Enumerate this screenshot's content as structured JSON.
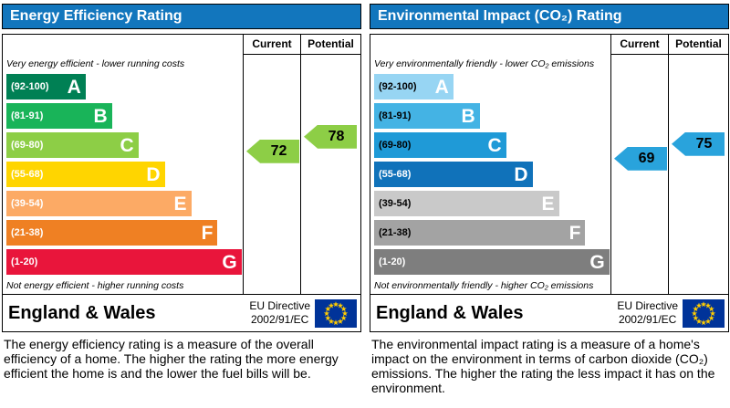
{
  "colors": {
    "header_bg": "#1276bd",
    "header_text": "#ffffff",
    "border": "#000000",
    "flag_bg": "#003399",
    "flag_stars": "#ffcc00",
    "arrow_text": "#000000",
    "page_bg": "#ffffff"
  },
  "panels": [
    {
      "title": "Energy Efficiency Rating",
      "columns": {
        "current": "Current",
        "potential": "Potential"
      },
      "top_note": "Very energy efficient - lower running costs",
      "bottom_note": "Not energy efficient - higher running costs",
      "bands": [
        {
          "letter": "A",
          "range": "(92-100)",
          "min": 92,
          "max": 100,
          "color": "#008054",
          "width_pct": 33,
          "range_color": "#ffffff",
          "letter_color": "#ffffff"
        },
        {
          "letter": "B",
          "range": "(81-91)",
          "min": 81,
          "max": 91,
          "color": "#19b459",
          "width_pct": 44,
          "range_color": "#ffffff",
          "letter_color": "#ffffff"
        },
        {
          "letter": "C",
          "range": "(69-80)",
          "min": 69,
          "max": 80,
          "color": "#8dce46",
          "width_pct": 55,
          "range_color": "#ffffff",
          "letter_color": "#ffffff"
        },
        {
          "letter": "D",
          "range": "(55-68)",
          "min": 55,
          "max": 68,
          "color": "#ffd500",
          "width_pct": 66,
          "range_color": "#ffffff",
          "letter_color": "#ffffff"
        },
        {
          "letter": "E",
          "range": "(39-54)",
          "min": 39,
          "max": 54,
          "color": "#fcaa65",
          "width_pct": 77,
          "range_color": "#ffffff",
          "letter_color": "#ffffff"
        },
        {
          "letter": "F",
          "range": "(21-38)",
          "min": 21,
          "max": 38,
          "color": "#ef8023",
          "width_pct": 88,
          "range_color": "#ffffff",
          "letter_color": "#ffffff"
        },
        {
          "letter": "G",
          "range": "(1-20)",
          "min": 1,
          "max": 20,
          "color": "#e9153b",
          "width_pct": 98,
          "range_color": "#ffffff",
          "letter_color": "#ffffff"
        }
      ],
      "current": {
        "value": 72,
        "color": "#8dce46"
      },
      "potential": {
        "value": 78,
        "color": "#8dce46"
      },
      "footer": {
        "region": "England & Wales",
        "directive": [
          "EU Directive",
          "2002/91/EC"
        ]
      },
      "description": "The energy efficiency rating is a measure of the overall efficiency of a home. The higher the rating the more energy efficient the home is and the lower the fuel bills will be."
    },
    {
      "title": "Environmental Impact (CO₂) Rating",
      "columns": {
        "current": "Current",
        "potential": "Potential"
      },
      "top_note": "Very environmentally friendly - lower CO₂ emissions",
      "bottom_note": "Not environmentally friendly - higher CO₂ emissions",
      "bands": [
        {
          "letter": "A",
          "range": "(92-100)",
          "min": 92,
          "max": 100,
          "color": "#97d5f3",
          "width_pct": 33,
          "range_color": "#000000",
          "letter_color": "#ffffff"
        },
        {
          "letter": "B",
          "range": "(81-91)",
          "min": 81,
          "max": 91,
          "color": "#44b3e4",
          "width_pct": 44,
          "range_color": "#000000",
          "letter_color": "#ffffff"
        },
        {
          "letter": "C",
          "range": "(69-80)",
          "min": 69,
          "max": 80,
          "color": "#1f9ad7",
          "width_pct": 55,
          "range_color": "#000000",
          "letter_color": "#ffffff"
        },
        {
          "letter": "D",
          "range": "(55-68)",
          "min": 55,
          "max": 68,
          "color": "#1072ba",
          "width_pct": 66,
          "range_color": "#ffffff",
          "letter_color": "#ffffff"
        },
        {
          "letter": "E",
          "range": "(39-54)",
          "min": 39,
          "max": 54,
          "color": "#c9c9c9",
          "width_pct": 77,
          "range_color": "#000000",
          "letter_color": "#ffffff"
        },
        {
          "letter": "F",
          "range": "(21-38)",
          "min": 21,
          "max": 38,
          "color": "#a3a3a3",
          "width_pct": 88,
          "range_color": "#000000",
          "letter_color": "#ffffff"
        },
        {
          "letter": "G",
          "range": "(1-20)",
          "min": 1,
          "max": 20,
          "color": "#7e7e7e",
          "width_pct": 98,
          "range_color": "#ffffff",
          "letter_color": "#ffffff"
        }
      ],
      "current": {
        "value": 69,
        "color": "#29a3dc"
      },
      "potential": {
        "value": 75,
        "color": "#29a3dc"
      },
      "footer": {
        "region": "England & Wales",
        "directive": [
          "EU Directive",
          "2002/91/EC"
        ]
      },
      "description": "The environmental impact rating is a measure of a home's impact on the environment in terms of carbon dioxide (CO₂) emissions. The higher the rating the less impact it has on the environment."
    }
  ],
  "chart_data": [
    {
      "type": "bar",
      "orientation": "horizontal",
      "title": "Energy Efficiency Rating",
      "subtitle": "England & Wales, EU Directive 2002/91/EC",
      "categories": [
        "A (92-100)",
        "B (81-91)",
        "C (69-80)",
        "D (55-68)",
        "E (39-54)",
        "F (21-38)",
        "G (1-20)"
      ],
      "series": [
        {
          "name": "Current",
          "values": [
            72
          ],
          "band": "C"
        },
        {
          "name": "Potential",
          "values": [
            78
          ],
          "band": "C"
        }
      ],
      "scale_min": 1,
      "scale_max": 100,
      "notes": [
        "Very energy efficient - lower running costs",
        "Not energy efficient - higher running costs"
      ]
    },
    {
      "type": "bar",
      "orientation": "horizontal",
      "title": "Environmental Impact (CO₂) Rating",
      "subtitle": "England & Wales, EU Directive 2002/91/EC",
      "categories": [
        "A (92-100)",
        "B (81-91)",
        "C (69-80)",
        "D (55-68)",
        "E (39-54)",
        "F (21-38)",
        "G (1-20)"
      ],
      "series": [
        {
          "name": "Current",
          "values": [
            69
          ],
          "band": "C"
        },
        {
          "name": "Potential",
          "values": [
            75
          ],
          "band": "C"
        }
      ],
      "scale_min": 1,
      "scale_max": 100,
      "notes": [
        "Very environmentally friendly - lower CO₂ emissions",
        "Not environmentally friendly - higher CO₂ emissions"
      ]
    }
  ]
}
